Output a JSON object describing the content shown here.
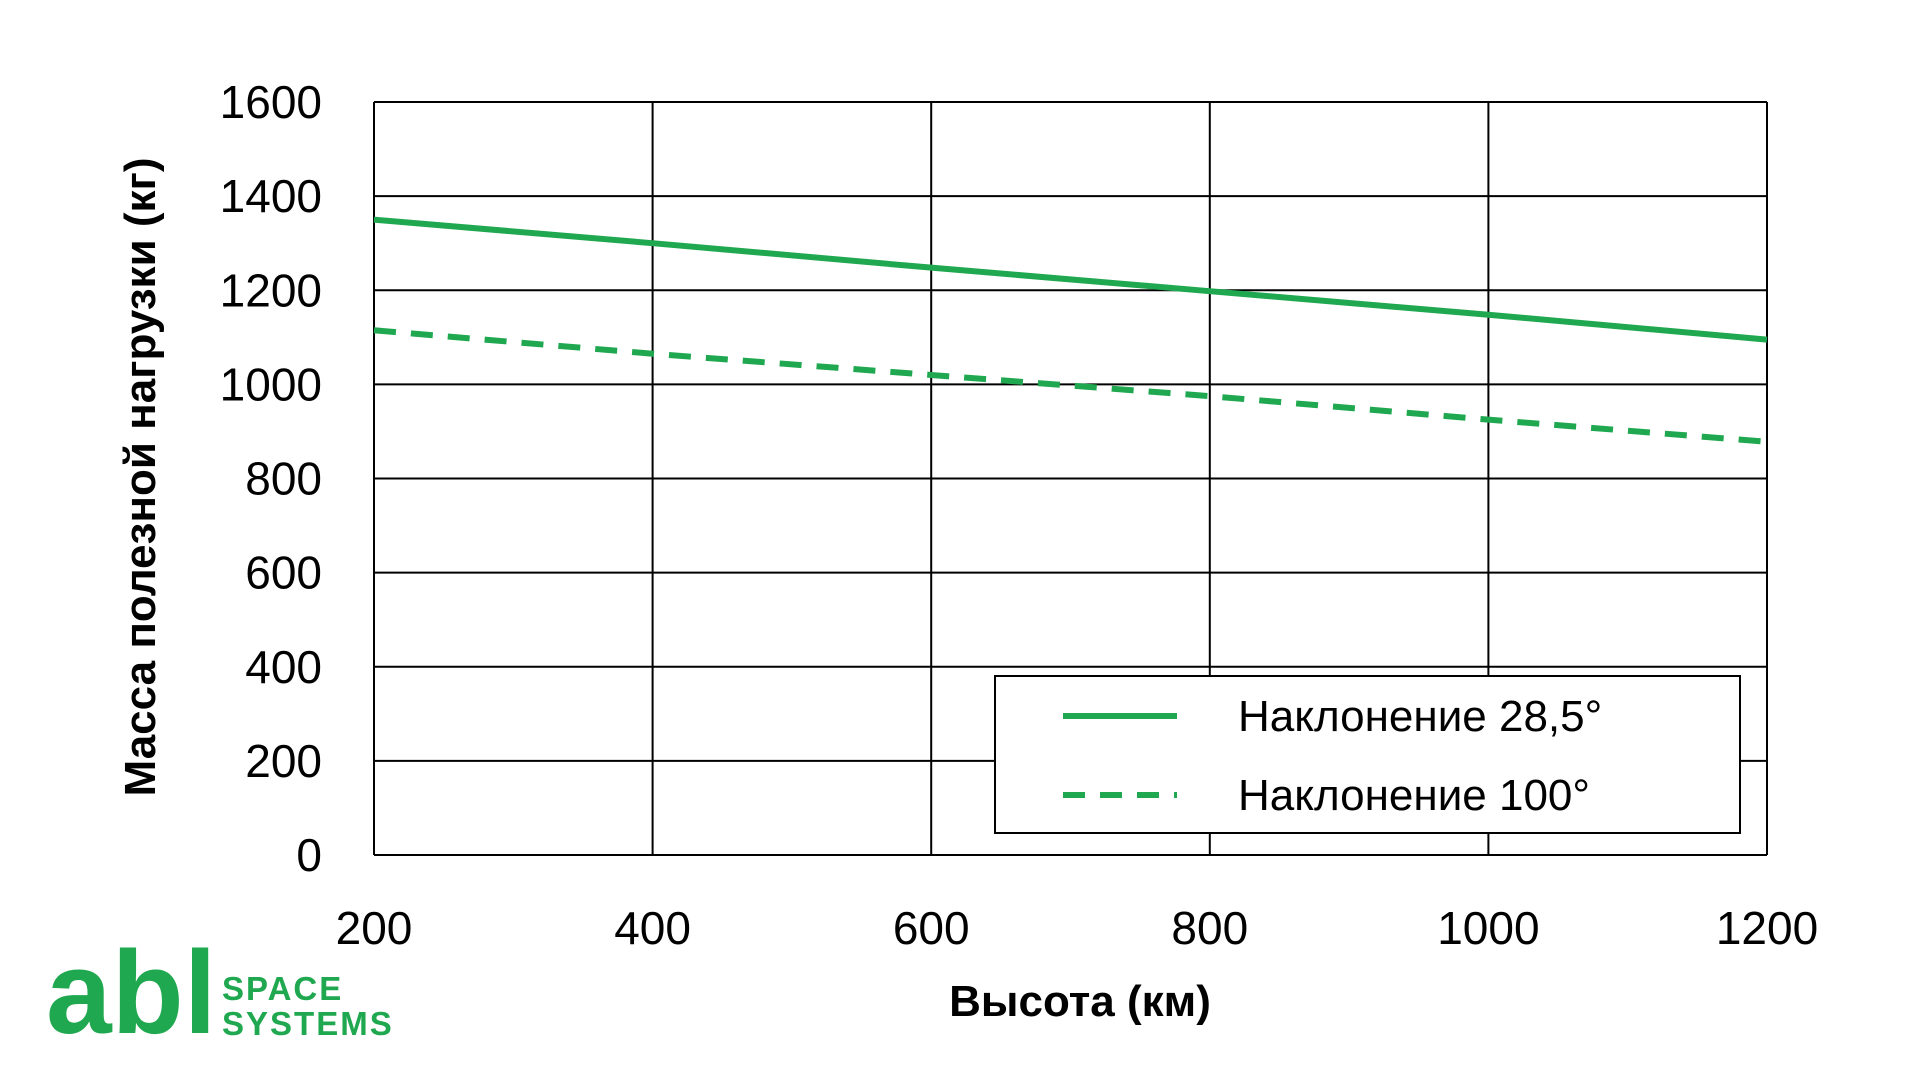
{
  "chart_data": {
    "type": "line",
    "title": "",
    "xlabel": "Высота (км)",
    "ylabel": "Масса полезной нагрузки (кг)",
    "xlim": [
      200,
      1200
    ],
    "ylim": [
      0,
      1600
    ],
    "xticks": [
      "200",
      "400",
      "600",
      "800",
      "1000",
      "1200"
    ],
    "yticks": [
      "0",
      "200",
      "400",
      "600",
      "800",
      "1000",
      "1200",
      "1400",
      "1600"
    ],
    "grid": true,
    "legend_position": "bottom-right",
    "series": [
      {
        "name": "Наклонение 28,5°",
        "style": "solid",
        "color": "#1fa84f",
        "x": [
          200,
          400,
          600,
          800,
          1000,
          1200
        ],
        "y": [
          1350,
          1300,
          1248,
          1198,
          1148,
          1095
        ]
      },
      {
        "name": "Наклонение 100°",
        "style": "dashed",
        "color": "#1fa84f",
        "x": [
          200,
          400,
          600,
          800,
          1000,
          1200
        ],
        "y": [
          1115,
          1065,
          1020,
          975,
          925,
          878
        ]
      }
    ]
  },
  "logo": {
    "brand": "abl",
    "line1": "SPACE",
    "line2": "SYSTEMS",
    "color": "#1fa84f"
  }
}
